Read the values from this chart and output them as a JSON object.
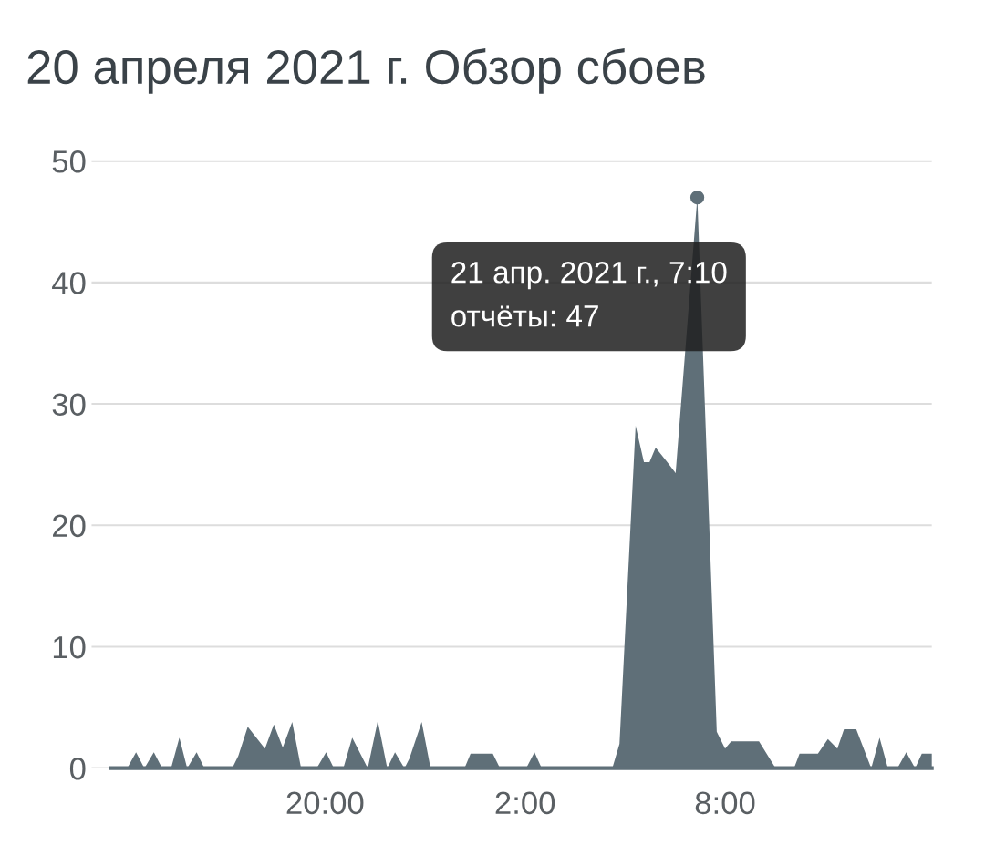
{
  "chart_data": {
    "type": "area",
    "title": "20 апреля 2021 г. Обзор сбоев",
    "x": [
      "2021-04-20T13:35",
      "2021-04-20T14:04",
      "2021-04-20T14:20",
      "2021-04-20T14:35",
      "2021-04-20T14:52",
      "2021-04-20T15:07",
      "2021-04-20T15:23",
      "2021-04-20T15:38",
      "2021-04-20T15:52",
      "2021-04-20T16:09",
      "2021-04-20T16:23",
      "2021-04-20T17:13",
      "2021-04-20T17:24",
      "2021-04-20T17:41",
      "2021-04-20T18:12",
      "2021-04-20T18:28",
      "2021-04-20T18:44",
      "2021-04-20T19:01",
      "2021-04-20T19:17",
      "2021-04-20T19:45",
      "2021-04-20T20:02",
      "2021-04-20T20:16",
      "2021-04-20T20:33",
      "2021-04-20T20:49",
      "2021-04-20T21:17",
      "2021-04-20T21:35",
      "2021-04-20T21:52",
      "2021-04-20T22:06",
      "2021-04-20T22:23",
      "2021-04-20T22:32",
      "2021-04-20T22:54",
      "2021-04-20T23:10",
      "2021-04-21T00:11",
      "2021-04-21T00:22",
      "2021-04-21T01:02",
      "2021-04-21T01:15",
      "2021-04-21T02:02",
      "2021-04-21T02:17",
      "2021-04-21T02:30",
      "2021-04-21T04:37",
      "2021-04-21T04:50",
      "2021-04-21T05:19",
      "2021-04-21T05:34",
      "2021-04-21T05:44",
      "2021-04-21T05:55",
      "2021-04-21T06:16",
      "2021-04-21T06:31",
      "2021-04-21T07:10",
      "2021-04-21T07:45",
      "2021-04-21T08:00",
      "2021-04-21T08:11",
      "2021-04-21T09:01",
      "2021-04-21T09:31",
      "2021-04-21T10:04",
      "2021-04-21T10:14",
      "2021-04-21T10:47",
      "2021-04-21T11:05",
      "2021-04-21T11:22",
      "2021-04-21T11:34",
      "2021-04-21T11:56",
      "2021-04-21T12:23",
      "2021-04-21T12:38",
      "2021-04-21T12:53",
      "2021-04-21T13:10",
      "2021-04-21T13:26",
      "2021-04-21T13:42",
      "2021-04-21T13:54",
      "2021-04-21T14:12"
    ],
    "series": [
      {
        "color": "#5f6f78",
        "values": [
          0,
          0,
          1.3,
          0,
          1.3,
          0,
          0,
          2.5,
          0,
          1.3,
          0,
          0,
          1,
          3.4,
          1.6,
          3.6,
          1.7,
          3.8,
          0,
          0,
          1.3,
          0,
          0,
          2.5,
          0,
          3.9,
          0,
          1.3,
          0,
          0.8,
          3.8,
          0,
          0,
          1.2,
          1.2,
          0,
          0,
          1.3,
          0,
          0,
          2,
          28.2,
          25.2,
          25.2,
          26.4,
          25.2,
          24.3,
          47,
          3,
          1.6,
          2.2,
          2.2,
          0,
          0,
          1.2,
          1.2,
          2.4,
          1.6,
          3.2,
          3.2,
          0,
          2.5,
          0,
          0,
          1.3,
          0,
          1.2,
          1.2
        ]
      }
    ],
    "xlim": [
      "2021-04-20T13:00",
      "2021-04-21T14:12"
    ],
    "xticks": [
      {
        "value": "2021-04-20T20:00",
        "label": "20:00"
      },
      {
        "value": "2021-04-21T02:00",
        "label": "2:00"
      },
      {
        "value": "2021-04-21T08:00",
        "label": "8:00"
      }
    ],
    "ylim": [
      0,
      50
    ],
    "yticks": [
      0,
      10,
      20,
      30,
      40,
      50
    ],
    "grid": "y",
    "legend": false,
    "annotations": [
      {
        "text": "21 апр. 2021 г., 7:10\nотчёты: 47",
        "x": "2021-04-21T07:10",
        "y": 47
      }
    ]
  }
}
